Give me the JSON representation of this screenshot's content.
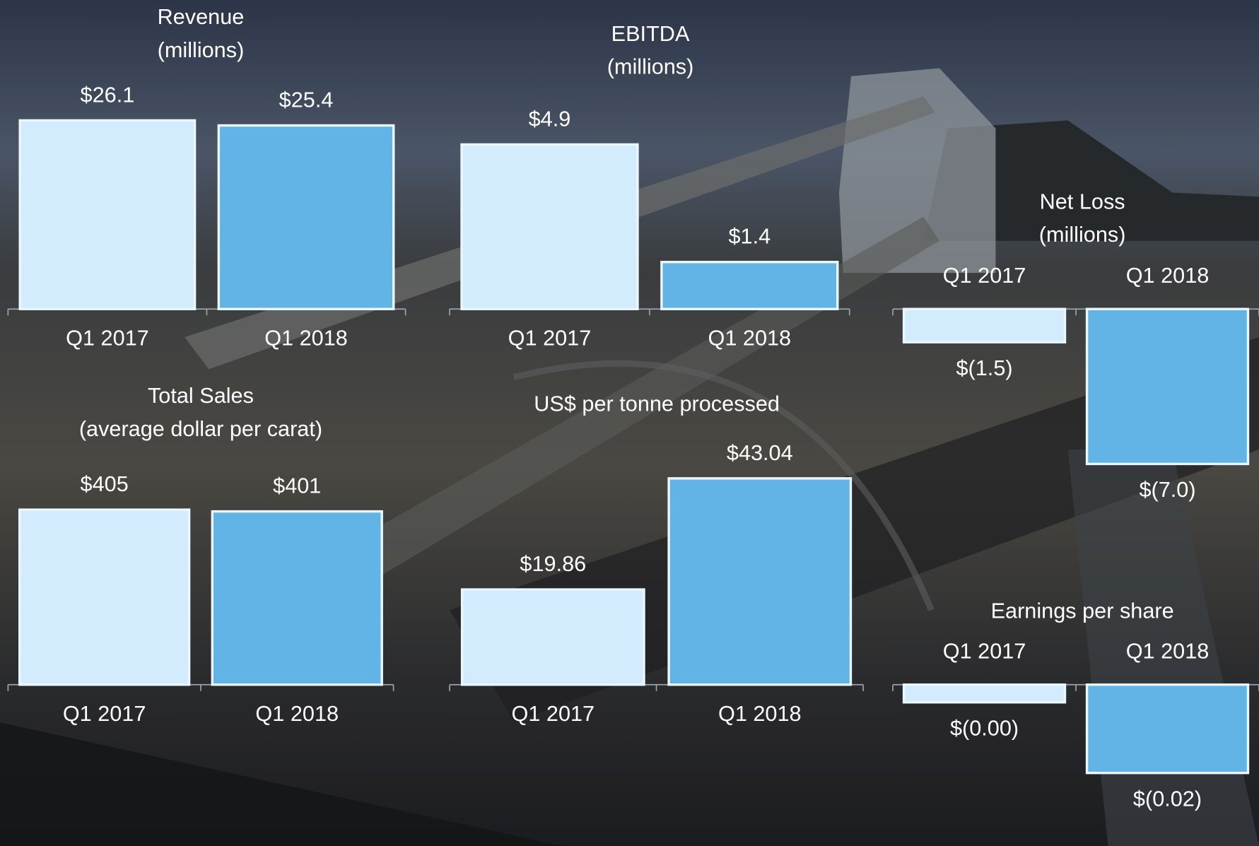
{
  "chart_data": [
    {
      "type": "bar",
      "title": "Revenue",
      "subtitle": "(millions)",
      "categories": [
        "Q1 2017",
        "Q1 2018"
      ],
      "values": [
        26.1,
        25.4
      ],
      "value_labels": [
        "$26.1",
        "$25.4"
      ],
      "colors": [
        "#d3ecfd",
        "#62b3e6"
      ]
    },
    {
      "type": "bar",
      "title": "EBITDA",
      "subtitle": "(millions)",
      "categories": [
        "Q1 2017",
        "Q1 2018"
      ],
      "values": [
        4.9,
        1.4
      ],
      "value_labels": [
        "$4.9",
        "$1.4"
      ],
      "colors": [
        "#d3ecfd",
        "#62b3e6"
      ]
    },
    {
      "type": "bar",
      "title": "Net Loss",
      "subtitle": "(millions)",
      "categories": [
        "Q1 2017",
        "Q1 2018"
      ],
      "values": [
        -1.5,
        -7.0
      ],
      "value_labels": [
        "$(1.5)",
        "$(7.0)"
      ],
      "colors": [
        "#d3ecfd",
        "#62b3e6"
      ]
    },
    {
      "type": "bar",
      "title": "Total Sales",
      "subtitle": "(average dollar per carat)",
      "categories": [
        "Q1 2017",
        "Q1 2018"
      ],
      "values": [
        405,
        401
      ],
      "value_labels": [
        "$405",
        "$401"
      ],
      "colors": [
        "#d3ecfd",
        "#62b3e6"
      ]
    },
    {
      "type": "bar",
      "title": "US$ per tonne processed",
      "categories": [
        "Q1 2017",
        "Q1 2018"
      ],
      "values": [
        19.86,
        43.04
      ],
      "value_labels": [
        "$19.86",
        "$43.04"
      ],
      "colors": [
        "#d3ecfd",
        "#62b3e6"
      ]
    },
    {
      "type": "bar",
      "title": "Earnings per share",
      "categories": [
        "Q1 2017",
        "Q1 2018"
      ],
      "values": [
        -0.004,
        -0.02
      ],
      "value_labels": [
        "$(0.00)",
        "$(0.02)"
      ],
      "colors": [
        "#d3ecfd",
        "#62b3e6"
      ]
    }
  ]
}
